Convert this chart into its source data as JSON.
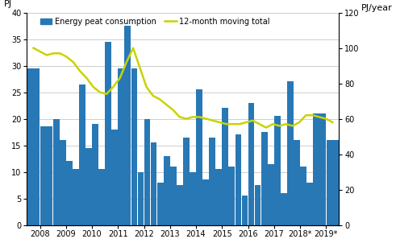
{
  "title_left": "PJ",
  "title_right": "PJ/year",
  "bar_color": "#2878b5",
  "line_color": "#c8d400",
  "bar_label": "Energy peat consumption",
  "line_label": "12-month moving total",
  "xlabels": [
    "2008",
    "2009",
    "2010",
    "2011",
    "2012",
    "2013",
    "2014",
    "2015",
    "2016",
    "2017",
    "2018*",
    "2019*"
  ],
  "bar_values": [
    29.5,
    18.5,
    20.0,
    16.0,
    12.0,
    10.5,
    26.5,
    14.5,
    19.0,
    10.5,
    34.5,
    18.0,
    29.5,
    37.5,
    29.5,
    10.0,
    20.0,
    15.5,
    8.0,
    13.0,
    11.0,
    7.5,
    16.5,
    10.0,
    25.5,
    8.5,
    16.5,
    10.5,
    22.0,
    11.0,
    17.0,
    5.5,
    23.0,
    7.5,
    17.5,
    11.5,
    20.5,
    6.0,
    27.0,
    16.0,
    11.0,
    8.0,
    21.0,
    16.0
  ],
  "bars_per_year": [
    2,
    4,
    4,
    4,
    4,
    4,
    4,
    4,
    4,
    4,
    4,
    2
  ],
  "line_y": [
    100,
    98,
    96,
    97,
    97,
    95,
    92,
    87,
    83,
    78,
    75,
    74,
    78,
    83,
    92,
    100,
    89,
    78,
    73,
    71,
    68,
    65,
    61,
    60,
    61,
    61,
    60,
    59,
    58,
    57,
    57,
    57,
    58,
    59,
    57,
    55,
    57,
    56,
    57,
    56,
    58,
    62,
    62,
    61,
    60,
    58
  ],
  "left_ylim": [
    0,
    40
  ],
  "right_ylim": [
    0,
    120
  ],
  "left_yticks": [
    0,
    5,
    10,
    15,
    20,
    25,
    30,
    35,
    40
  ],
  "right_yticks": [
    0,
    20,
    40,
    60,
    80,
    100,
    120
  ],
  "background_color": "#ffffff",
  "grid_color": "#bbbbbb"
}
